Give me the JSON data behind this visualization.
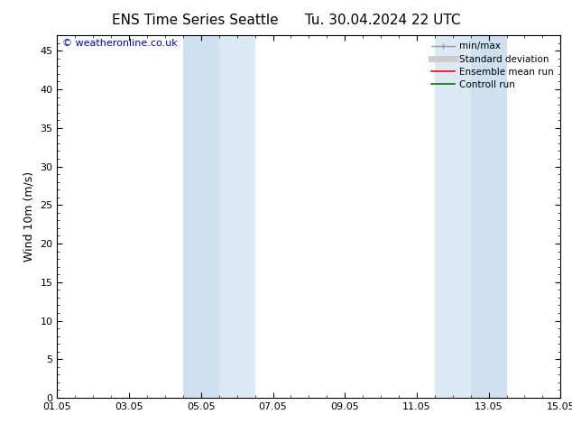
{
  "title_left": "ENS Time Series Seattle",
  "title_right": "Tu. 30.04.2024 22 UTC",
  "ylabel": "Wind 10m (m/s)",
  "ylim": [
    0,
    47
  ],
  "yticks": [
    0,
    5,
    10,
    15,
    20,
    25,
    30,
    35,
    40,
    45
  ],
  "xtick_labels": [
    "01.05",
    "03.05",
    "05.05",
    "07.05",
    "09.05",
    "11.05",
    "13.05",
    "15.05"
  ],
  "xtick_positions": [
    0,
    2,
    4,
    6,
    8,
    10,
    12,
    14
  ],
  "xlim": [
    0,
    14
  ],
  "bg_color": "#ffffff",
  "plot_bg_color": "#ffffff",
  "shaded_bands": [
    {
      "x_start": 3.5,
      "x_end": 4.5,
      "color": "#dce9f5"
    },
    {
      "x_start": 4.5,
      "x_end": 5.5,
      "color": "#dce9f5"
    },
    {
      "x_start": 10.5,
      "x_end": 11.5,
      "color": "#dce9f5"
    },
    {
      "x_start": 11.5,
      "x_end": 12.5,
      "color": "#dce9f5"
    }
  ],
  "shaded_bands_inner": [
    {
      "x_start": 3.5,
      "x_end": 4.5,
      "color": "#cfe0f0"
    },
    {
      "x_start": 11.5,
      "x_end": 12.5,
      "color": "#cfe0f0"
    }
  ],
  "legend_entries": [
    {
      "label": "min/max",
      "color": "#999999",
      "linewidth": 1.0
    },
    {
      "label": "Standard deviation",
      "color": "#cccccc",
      "linewidth": 5
    },
    {
      "label": "Ensemble mean run",
      "color": "#ff0000",
      "linewidth": 1.2
    },
    {
      "label": "Controll run",
      "color": "#007700",
      "linewidth": 1.2
    }
  ],
  "watermark": "© weatheronline.co.uk",
  "watermark_color": "#0000cc",
  "title_fontsize": 11,
  "ylabel_fontsize": 9,
  "tick_fontsize": 8,
  "legend_fontsize": 7.5
}
